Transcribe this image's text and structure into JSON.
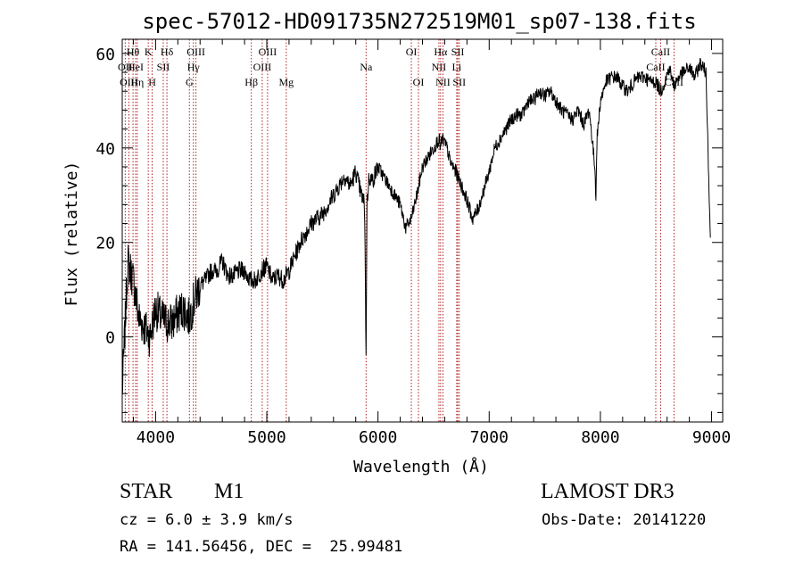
{
  "chart_data": {
    "type": "line",
    "title": "spec-57012-HD091735N272519M01_sp07-138.fits",
    "xlabel": "Wavelength (Å)",
    "ylabel": "Flux (relative)",
    "xlim": [
      3700,
      9100
    ],
    "ylim": [
      -18,
      63
    ],
    "xticks": [
      4000,
      5000,
      6000,
      7000,
      8000,
      9000
    ],
    "yticks": [
      0,
      20,
      40,
      60
    ],
    "grid": false,
    "line_color": "#000000",
    "marker_color": "#b22222",
    "x": [
      3700,
      3750,
      3800,
      3850,
      3900,
      3950,
      4000,
      4050,
      4100,
      4150,
      4200,
      4250,
      4300,
      4350,
      4400,
      4450,
      4500,
      4550,
      4600,
      4650,
      4700,
      4750,
      4800,
      4850,
      4900,
      4950,
      5000,
      5050,
      5100,
      5150,
      5200,
      5300,
      5400,
      5500,
      5600,
      5700,
      5750,
      5800,
      5850,
      5880,
      5893,
      5900,
      5920,
      5950,
      6000,
      6050,
      6100,
      6150,
      6200,
      6250,
      6300,
      6350,
      6400,
      6450,
      6500,
      6550,
      6563,
      6580,
      6620,
      6650,
      6700,
      6750,
      6800,
      6850,
      6900,
      6950,
      7000,
      7050,
      7100,
      7150,
      7200,
      7250,
      7300,
      7350,
      7400,
      7450,
      7500,
      7550,
      7600,
      7650,
      7700,
      7750,
      7800,
      7850,
      7900,
      7950,
      7960,
      7970,
      8000,
      8050,
      8100,
      8150,
      8200,
      8250,
      8300,
      8350,
      8400,
      8450,
      8500,
      8542,
      8580,
      8620,
      8662,
      8700,
      8750,
      8800,
      8850,
      8900,
      8950,
      8990
    ],
    "y": [
      -12,
      16,
      12,
      4,
      2,
      0,
      6,
      4,
      3,
      3,
      5,
      6,
      4,
      8,
      11,
      12,
      14,
      14,
      16,
      13,
      13,
      14,
      14,
      12,
      12,
      14,
      15,
      12,
      13,
      12,
      14,
      20,
      24,
      26,
      30,
      34,
      32,
      35,
      30,
      28,
      -5,
      28,
      34,
      33,
      36,
      34,
      32,
      30,
      28,
      23,
      25,
      30,
      36,
      38,
      40,
      42,
      40,
      42,
      40,
      37,
      35,
      32,
      29,
      25,
      27,
      31,
      35,
      40,
      42,
      44,
      46,
      47,
      47,
      50,
      50,
      52,
      51,
      52,
      50,
      48,
      47,
      46,
      48,
      45,
      48,
      36,
      30,
      42,
      50,
      54,
      55,
      55,
      53,
      52,
      54,
      55,
      55,
      54,
      54,
      52,
      54,
      57,
      53,
      55,
      56,
      57,
      55,
      58,
      56,
      20
    ],
    "line_markers": [
      {
        "label": "Hθ",
        "wavelength": 3797
      },
      {
        "label": "OII",
        "wavelength": 3727
      },
      {
        "label": "OIII",
        "wavelength": 3760
      },
      {
        "label": "HeI",
        "wavelength": 3820
      },
      {
        "label": "Hη",
        "wavelength": 3835
      },
      {
        "label": "SII",
        "wavelength": 4069
      },
      {
        "label": "K",
        "wavelength": 3934
      },
      {
        "label": "H",
        "wavelength": 3969
      },
      {
        "label": "Hδ",
        "wavelength": 4102
      },
      {
        "label": "OIII",
        "wavelength": 4363
      },
      {
        "label": "Hγ",
        "wavelength": 4340
      },
      {
        "label": "G",
        "wavelength": 4304
      },
      {
        "label": "Hβ",
        "wavelength": 4861
      },
      {
        "label": "OIII",
        "wavelength": 5007
      },
      {
        "label": "OIII",
        "wavelength": 4959
      },
      {
        "label": "Mg",
        "wavelength": 5175
      },
      {
        "label": "Na",
        "wavelength": 5893
      },
      {
        "label": "OI",
        "wavelength": 6300
      },
      {
        "label": "OI",
        "wavelength": 6364
      },
      {
        "label": "Hα",
        "wavelength": 6563
      },
      {
        "label": "NII",
        "wavelength": 6548
      },
      {
        "label": "NII",
        "wavelength": 6584
      },
      {
        "label": "SII",
        "wavelength": 6717
      },
      {
        "label": "SII",
        "wavelength": 6731
      },
      {
        "label": "Li",
        "wavelength": 6708
      },
      {
        "label": "CaII",
        "wavelength": 8542
      },
      {
        "label": "CaII",
        "wavelength": 8498
      },
      {
        "label": "CaII",
        "wavelength": 8662
      }
    ]
  },
  "info": {
    "class_label": "STAR",
    "subclass": "M1",
    "survey": "LAMOST DR3",
    "cz": "cz = 6.0 ± 3.9 km/s",
    "obs_date": "Obs-Date: 20141220",
    "coords": "RA = 141.56456, DEC =  25.99481"
  }
}
